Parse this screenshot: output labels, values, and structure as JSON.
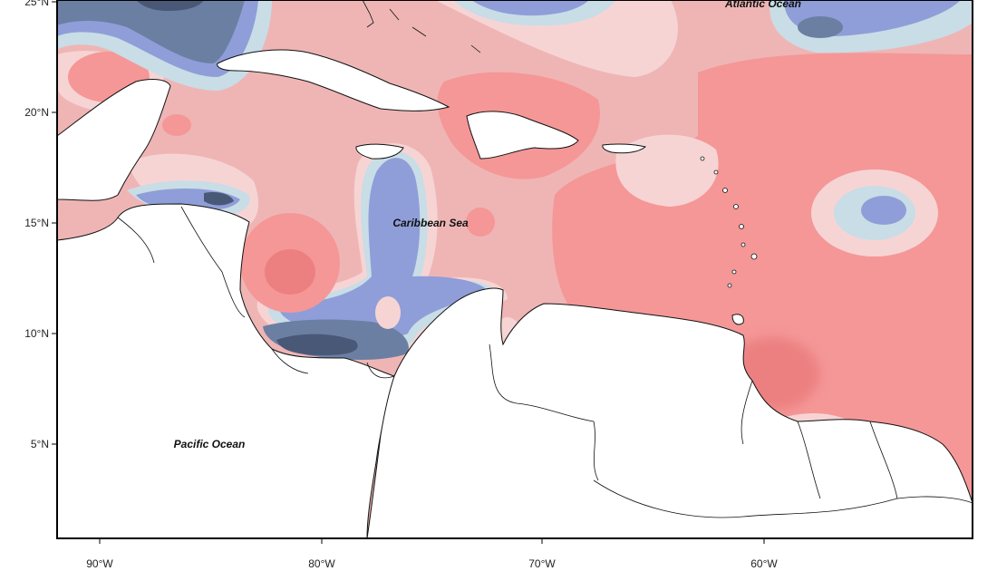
{
  "map": {
    "lat_labels": [
      "25°N",
      "20°N",
      "15°N",
      "10°N",
      "5°N"
    ],
    "lon_labels": [
      "90°W",
      "80°W",
      "70°W",
      "60°W"
    ],
    "place_labels": {
      "atlantic": "Atlantic Ocean",
      "caribbean": "Caribbean Sea",
      "pacific": "Pacific Ocean"
    },
    "palette": {
      "frame": "#000000",
      "land": "#ffffff",
      "coast": "#111111",
      "anomaly_neutral": "#f7d4d4",
      "warm_light": "#efb5b5",
      "warm_mid": "#f59797",
      "warm_strong": "#ec8080",
      "cool_light": "#c8dde6",
      "cool_mid": "#8f9ed8",
      "cool_strong": "#6b7fa3",
      "cool_darkest": "#4a5878"
    }
  }
}
